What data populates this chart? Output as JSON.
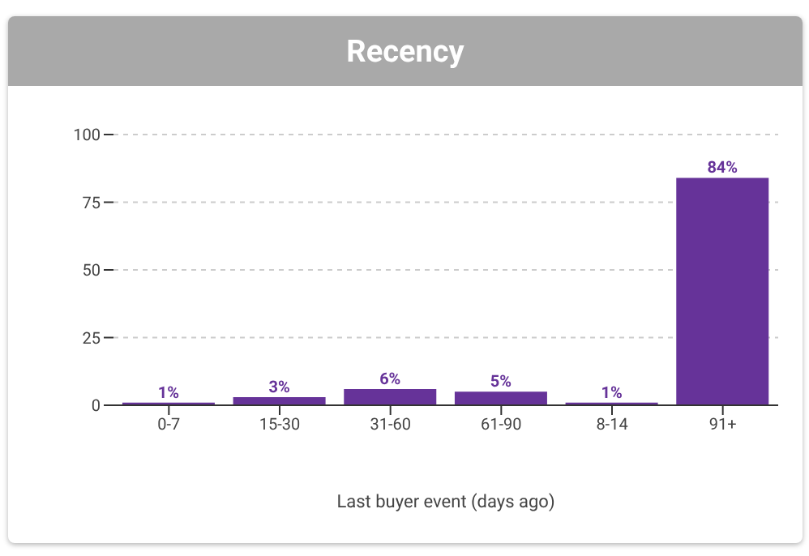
{
  "chart_data": {
    "type": "bar",
    "title": "Recency",
    "xlabel": "Last buyer event (days ago)",
    "categories": [
      "0-7",
      "15-30",
      "31-60",
      "61-90",
      "8-14",
      "91+"
    ],
    "values": [
      1,
      3,
      6,
      5,
      1,
      84
    ],
    "value_labels": [
      "1%",
      "3%",
      "6%",
      "5%",
      "1%",
      "84%"
    ],
    "color": "#663399",
    "ylim": [
      0,
      100
    ],
    "yticks": [
      0,
      25,
      50,
      75,
      100
    ],
    "grid": "y"
  }
}
